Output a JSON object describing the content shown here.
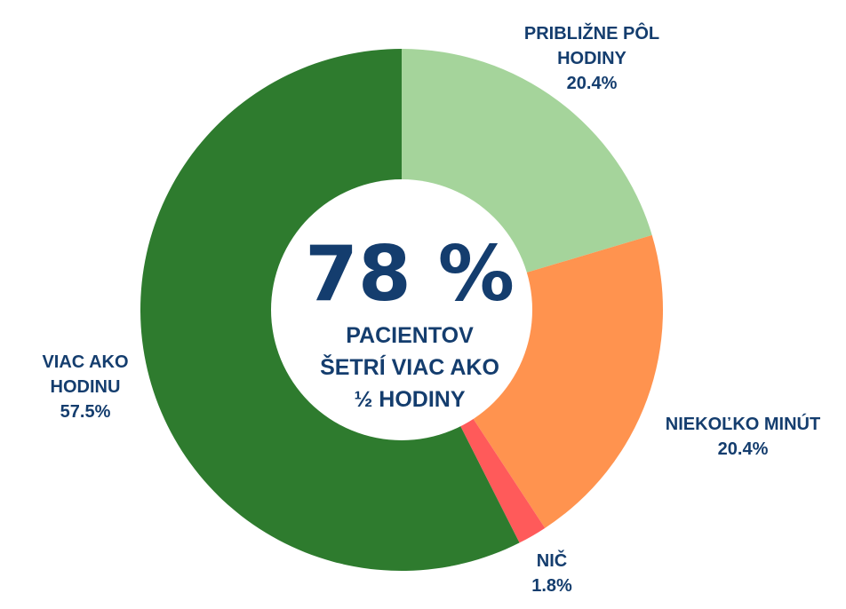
{
  "chart_data": {
    "type": "pie",
    "variant": "donut",
    "center": {
      "value": "78 %",
      "lines": [
        "PACIENTOV",
        "ŠETRÍ VIAC AKO",
        "½ HODINY"
      ]
    },
    "slices": [
      {
        "label_lines": [
          "PRIBLIŽNE PÔL",
          "HODINY"
        ],
        "value": 20.4,
        "value_label": "20.4%",
        "color": "#a5d49b"
      },
      {
        "label_lines": [
          "NIEKOĽKO MINÚT"
        ],
        "value": 20.4,
        "value_label": "20.4%",
        "color": "#ff934f"
      },
      {
        "label_lines": [
          "NIČ"
        ],
        "value": 1.8,
        "value_label": "1.8%",
        "color": "#ff5a5a"
      },
      {
        "label_lines": [
          "VIAC AKO",
          "HODINU"
        ],
        "value": 57.5,
        "value_label": "57.5%",
        "color": "#2e7b2e"
      }
    ],
    "title": "",
    "legend": "none"
  }
}
